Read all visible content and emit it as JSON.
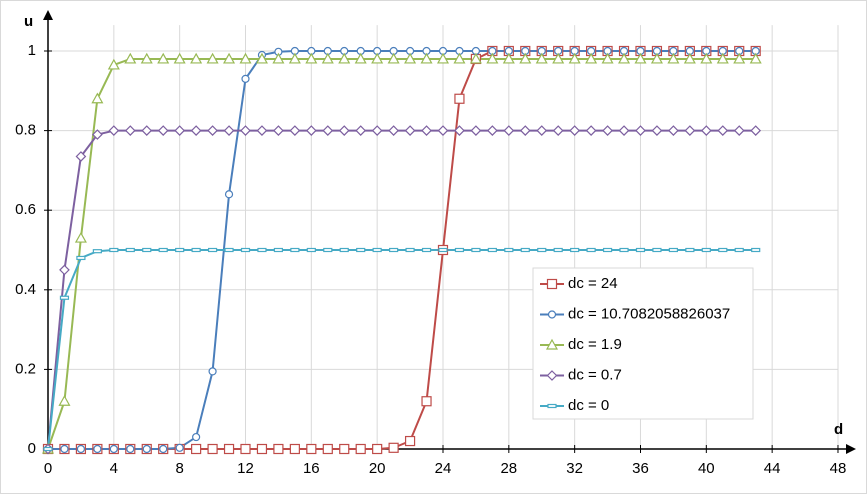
{
  "chart_data": {
    "type": "line",
    "x_label": "d",
    "y_label": "u",
    "x": [
      0,
      1,
      2,
      3,
      4,
      5,
      6,
      7,
      8,
      9,
      10,
      11,
      12,
      13,
      14,
      15,
      16,
      17,
      18,
      19,
      20,
      21,
      22,
      23,
      24,
      25,
      26,
      27,
      28,
      29,
      30,
      31,
      32,
      33,
      34,
      35,
      36,
      37,
      38,
      39,
      40,
      41,
      42,
      43
    ],
    "series": [
      {
        "name": "dc = 24",
        "color": "#be4b48",
        "marker": "square",
        "values": [
          0,
          0,
          0,
          0,
          0,
          0,
          0,
          0,
          0,
          0,
          0,
          0,
          0,
          0,
          0,
          0,
          0,
          0,
          0,
          0,
          0,
          0.003,
          0.02,
          0.12,
          0.5,
          0.88,
          0.98,
          1,
          1,
          1,
          1,
          1,
          1,
          1,
          1,
          1,
          1,
          1,
          1,
          1,
          1,
          1,
          1,
          1
        ]
      },
      {
        "name": "dc = 10.7082058826037",
        "color": "#4a7ebb",
        "marker": "circle",
        "values": [
          0,
          0,
          0,
          0,
          0,
          0,
          0,
          0,
          0.003,
          0.03,
          0.195,
          0.64,
          0.93,
          0.99,
          0.998,
          1,
          1,
          1,
          1,
          1,
          1,
          1,
          1,
          1,
          1,
          1,
          1,
          1,
          1,
          1,
          1,
          1,
          1,
          1,
          1,
          1,
          1,
          1,
          1,
          1,
          1,
          1,
          1,
          1
        ]
      },
      {
        "name": "dc = 1.9",
        "color": "#98b954",
        "marker": "triangle",
        "values": [
          0,
          0.12,
          0.53,
          0.88,
          0.965,
          0.98,
          0.98,
          0.98,
          0.98,
          0.98,
          0.98,
          0.98,
          0.98,
          0.98,
          0.98,
          0.98,
          0.98,
          0.98,
          0.98,
          0.98,
          0.98,
          0.98,
          0.98,
          0.98,
          0.98,
          0.98,
          0.98,
          0.98,
          0.98,
          0.98,
          0.98,
          0.98,
          0.98,
          0.98,
          0.98,
          0.98,
          0.98,
          0.98,
          0.98,
          0.98,
          0.98,
          0.98,
          0.98,
          0.98
        ]
      },
      {
        "name": "dc = 0.7",
        "color": "#7d60a0",
        "marker": "diamond",
        "values": [
          0,
          0.45,
          0.735,
          0.79,
          0.8,
          0.8,
          0.8,
          0.8,
          0.8,
          0.8,
          0.8,
          0.8,
          0.8,
          0.8,
          0.8,
          0.8,
          0.8,
          0.8,
          0.8,
          0.8,
          0.8,
          0.8,
          0.8,
          0.8,
          0.8,
          0.8,
          0.8,
          0.8,
          0.8,
          0.8,
          0.8,
          0.8,
          0.8,
          0.8,
          0.8,
          0.8,
          0.8,
          0.8,
          0.8,
          0.8,
          0.8,
          0.8,
          0.8,
          0.8
        ]
      },
      {
        "name": "dc = 0",
        "color": "#46aac5",
        "marker": "dash",
        "values": [
          0,
          0.38,
          0.48,
          0.497,
          0.5,
          0.5,
          0.5,
          0.5,
          0.5,
          0.5,
          0.5,
          0.5,
          0.5,
          0.5,
          0.5,
          0.5,
          0.5,
          0.5,
          0.5,
          0.5,
          0.5,
          0.5,
          0.5,
          0.5,
          0.5,
          0.5,
          0.5,
          0.5,
          0.5,
          0.5,
          0.5,
          0.5,
          0.5,
          0.5,
          0.5,
          0.5,
          0.5,
          0.5,
          0.5,
          0.5,
          0.5,
          0.5,
          0.5,
          0.5
        ]
      }
    ],
    "xlim": [
      0,
      48.6
    ],
    "ylim": [
      0,
      1.09
    ],
    "xticks": [
      0,
      4,
      8,
      12,
      16,
      20,
      24,
      28,
      32,
      36,
      40,
      44,
      48
    ],
    "yticks": [
      0,
      0.2,
      0.4,
      0.6,
      0.8,
      1
    ],
    "grid": true
  }
}
